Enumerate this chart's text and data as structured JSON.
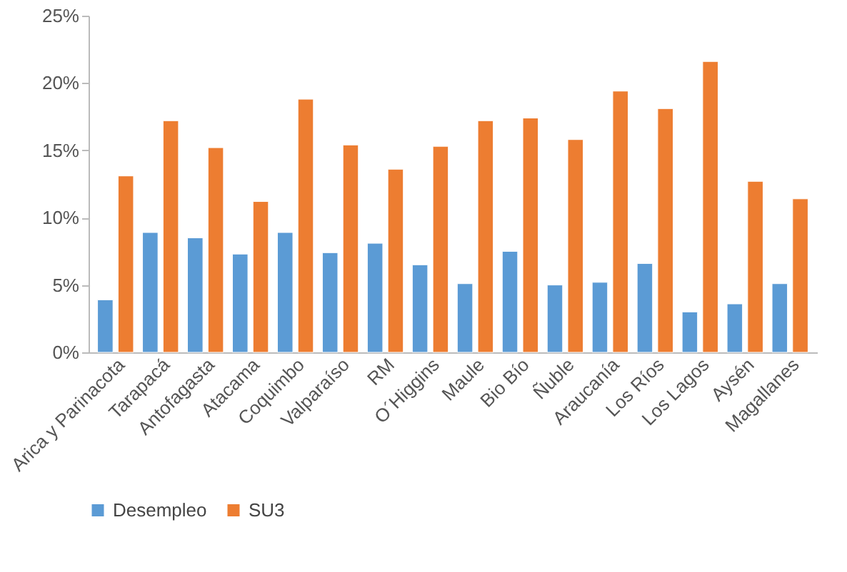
{
  "chart_data": {
    "type": "bar",
    "categories": [
      "Arica y Parinacota",
      "Tarapacá",
      "Antofagasta",
      "Atacama",
      "Coquimbo",
      "Valparaíso",
      "RM",
      "O´Higgins",
      "Maule",
      "Bio Bío",
      "Ñuble",
      "Araucanía",
      "Los Ríos",
      "Los Lagos",
      "Aysén",
      "Magallanes"
    ],
    "series": [
      {
        "name": "Desempleo",
        "color": "#5b9bd5",
        "values": [
          3.9,
          8.9,
          8.5,
          7.3,
          8.9,
          7.4,
          8.1,
          6.5,
          5.1,
          7.5,
          5.0,
          5.2,
          6.6,
          3.0,
          3.6,
          5.1
        ]
      },
      {
        "name": "SU3",
        "color": "#ed7d31",
        "values": [
          13.1,
          17.2,
          15.2,
          11.2,
          18.8,
          15.4,
          13.6,
          15.3,
          17.2,
          17.4,
          15.8,
          19.4,
          18.1,
          21.6,
          12.7,
          11.4
        ]
      }
    ],
    "ylim": [
      0,
      25
    ],
    "yticks": [
      {
        "value": 0,
        "label": "0%"
      },
      {
        "value": 5,
        "label": "5%"
      },
      {
        "value": 10,
        "label": "10%"
      },
      {
        "value": 15,
        "label": "15%"
      },
      {
        "value": 20,
        "label": "20%"
      },
      {
        "value": 25,
        "label": "25%"
      }
    ],
    "grid": false,
    "legend": "bottom"
  }
}
